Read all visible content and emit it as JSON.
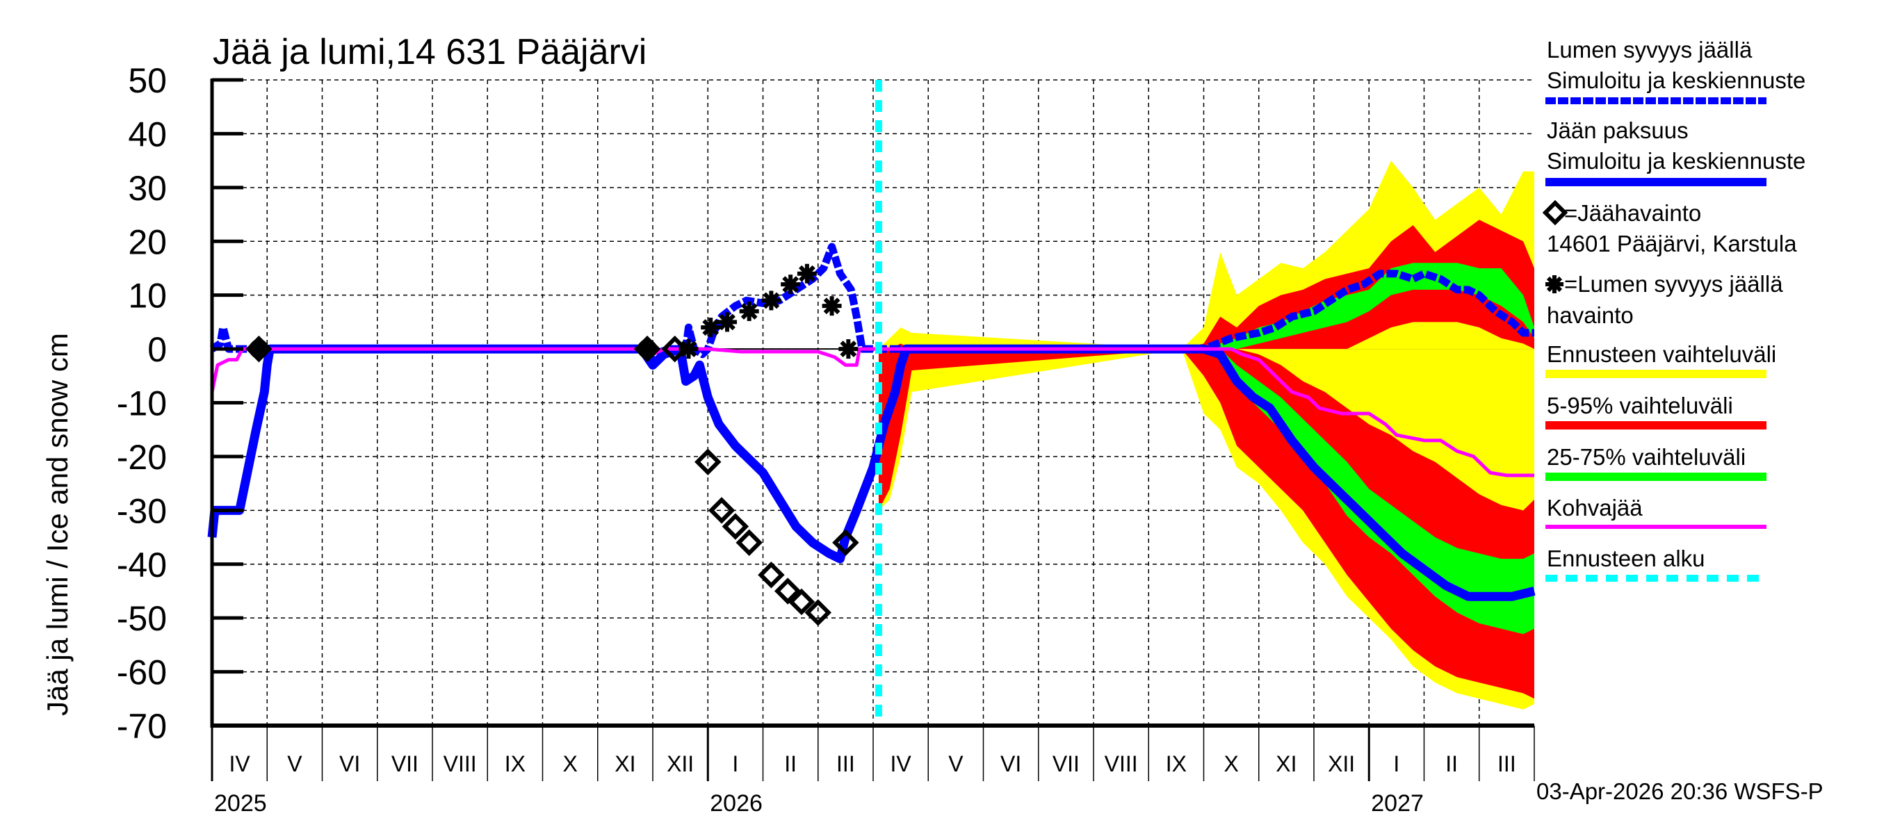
{
  "chart_data": {
    "type": "area",
    "title": "Jää ja lumi,14 631 Pääjärvi",
    "ylabel": "Jää ja lumi / Ice and snow    cm",
    "xlabel": "",
    "ylim": [
      -70,
      50
    ],
    "yticks": [
      50,
      40,
      30,
      20,
      10,
      0,
      -10,
      -20,
      -30,
      -40,
      -50,
      -60,
      -70
    ],
    "grid": true,
    "legend_position": "right",
    "x_months": [
      "IV",
      "V",
      "VI",
      "VII",
      "VIII",
      "IX",
      "X",
      "XI",
      "XII",
      "I",
      "II",
      "III",
      "IV",
      "V",
      "VI",
      "VII",
      "VIII",
      "IX",
      "X",
      "XI",
      "XII",
      "I",
      "II",
      "III"
    ],
    "x_years": [
      {
        "label": "2025",
        "month_index": 0
      },
      {
        "label": "2026",
        "month_index": 9
      },
      {
        "label": "2027",
        "month_index": 21
      }
    ],
    "x_range": [
      "2025-04-01",
      "2027-04-01"
    ],
    "forecast_start": "2026-04-03",
    "forecast_start_month_index": 12.1,
    "colors": {
      "snow_sim": "#0000ff",
      "ice_sim": "#0000ff",
      "band_full": "#ffff00",
      "band_5_95": "#ff0000",
      "band_25_75": "#00ff00",
      "slush_ice": "#ff00ff",
      "forecast_start": "#00ffff",
      "observations": "#000000"
    },
    "series": [
      {
        "name": "Lumen syvyys jäällä – Simuloitu ja keskiennuste",
        "style": "dashed-thick",
        "points": [
          [
            0,
            0
          ],
          [
            0.15,
            1
          ],
          [
            0.2,
            4
          ],
          [
            0.3,
            0
          ],
          [
            4.5,
            0
          ],
          [
            7.85,
            0
          ],
          [
            7.9,
            1
          ],
          [
            8.0,
            -1
          ],
          [
            8.3,
            0
          ],
          [
            8.6,
            0
          ],
          [
            8.65,
            4
          ],
          [
            8.75,
            0
          ],
          [
            8.9,
            -1
          ],
          [
            9.0,
            0
          ],
          [
            9.1,
            3
          ],
          [
            9.25,
            6
          ],
          [
            9.5,
            8
          ],
          [
            9.7,
            9
          ],
          [
            10.0,
            8.5
          ],
          [
            10.3,
            9
          ],
          [
            10.6,
            11
          ],
          [
            10.9,
            13
          ],
          [
            11.1,
            15
          ],
          [
            11.25,
            19
          ],
          [
            11.4,
            14
          ],
          [
            11.6,
            11
          ],
          [
            11.7,
            6
          ],
          [
            11.8,
            0
          ],
          [
            12.1,
            0
          ],
          [
            17.5,
            0
          ],
          [
            18.0,
            0
          ],
          [
            18.5,
            2
          ],
          [
            19.0,
            3
          ],
          [
            19.3,
            4
          ],
          [
            19.6,
            6
          ],
          [
            20.0,
            7
          ],
          [
            20.3,
            9
          ],
          [
            20.6,
            11
          ],
          [
            20.9,
            12
          ],
          [
            21.2,
            14
          ],
          [
            21.5,
            14
          ],
          [
            21.8,
            13
          ],
          [
            22.0,
            14
          ],
          [
            22.3,
            13
          ],
          [
            22.6,
            11
          ],
          [
            22.8,
            11
          ],
          [
            23.0,
            10
          ],
          [
            23.3,
            7
          ],
          [
            23.6,
            5
          ],
          [
            23.8,
            3
          ],
          [
            24.0,
            3
          ]
        ]
      },
      {
        "name": "Jään paksuus – Simuloitu ja keskiennuste",
        "style": "solid-thick",
        "points": [
          [
            0,
            -35
          ],
          [
            0.05,
            -30
          ],
          [
            0.2,
            -30
          ],
          [
            0.5,
            -30
          ],
          [
            0.6,
            -25
          ],
          [
            0.8,
            -15
          ],
          [
            0.95,
            -8
          ],
          [
            1.0,
            -3
          ],
          [
            1.05,
            0
          ],
          [
            4.5,
            0
          ],
          [
            7.8,
            0
          ],
          [
            8.0,
            -3
          ],
          [
            8.2,
            -1
          ],
          [
            8.5,
            0
          ],
          [
            8.6,
            -6
          ],
          [
            8.75,
            -5
          ],
          [
            8.85,
            -3
          ],
          [
            9.0,
            -9
          ],
          [
            9.2,
            -14
          ],
          [
            9.5,
            -18
          ],
          [
            9.7,
            -20
          ],
          [
            10.0,
            -23
          ],
          [
            10.3,
            -28
          ],
          [
            10.6,
            -33
          ],
          [
            10.9,
            -36
          ],
          [
            11.2,
            -38
          ],
          [
            11.4,
            -39
          ],
          [
            11.5,
            -35
          ],
          [
            11.7,
            -30
          ],
          [
            12.0,
            -22
          ],
          [
            12.2,
            -14
          ],
          [
            12.4,
            -8
          ],
          [
            12.5,
            -3
          ],
          [
            12.6,
            0
          ],
          [
            17.5,
            0
          ],
          [
            18.0,
            0
          ],
          [
            18.3,
            -1
          ],
          [
            18.6,
            -6
          ],
          [
            18.9,
            -9
          ],
          [
            19.2,
            -11
          ],
          [
            19.6,
            -17
          ],
          [
            20.0,
            -22
          ],
          [
            20.4,
            -26
          ],
          [
            20.8,
            -30
          ],
          [
            21.2,
            -34
          ],
          [
            21.6,
            -38
          ],
          [
            22.0,
            -41
          ],
          [
            22.4,
            -44
          ],
          [
            22.8,
            -46
          ],
          [
            23.2,
            -46
          ],
          [
            23.6,
            -46
          ],
          [
            24.0,
            -45
          ]
        ]
      },
      {
        "name": "Kohvajää",
        "style": "solid",
        "points": [
          [
            0,
            -8
          ],
          [
            0.1,
            -3
          ],
          [
            0.3,
            -2
          ],
          [
            0.45,
            -2
          ],
          [
            0.55,
            0
          ],
          [
            7.8,
            0
          ],
          [
            8.0,
            -1
          ],
          [
            8.2,
            0
          ],
          [
            9.0,
            0
          ],
          [
            9.6,
            -0.5
          ],
          [
            11.0,
            -0.5
          ],
          [
            11.3,
            -1.5
          ],
          [
            11.5,
            -3
          ],
          [
            11.7,
            -3
          ],
          [
            11.75,
            0
          ],
          [
            12.1,
            0
          ],
          [
            18.5,
            0
          ],
          [
            18.7,
            -1
          ],
          [
            19.0,
            -2
          ],
          [
            19.3,
            -5
          ],
          [
            19.6,
            -8
          ],
          [
            19.9,
            -9
          ],
          [
            20.1,
            -11
          ],
          [
            20.5,
            -12
          ],
          [
            21.0,
            -12
          ],
          [
            21.3,
            -14
          ],
          [
            21.5,
            -16
          ],
          [
            22.0,
            -17
          ],
          [
            22.3,
            -17
          ],
          [
            22.6,
            -19
          ],
          [
            22.9,
            -20
          ],
          [
            23.2,
            -23
          ],
          [
            23.5,
            -23.5
          ],
          [
            24.0,
            -23.5
          ]
        ]
      }
    ],
    "bands": {
      "upper": {
        "x": [
          12.1,
          12.3,
          12.5,
          12.7,
          17.6,
          18.0,
          18.3,
          18.6,
          19.0,
          19.4,
          19.8,
          20.2,
          20.6,
          21.0,
          21.4,
          21.8,
          22.2,
          22.6,
          23.0,
          23.4,
          23.8,
          24.0
        ],
        "yellow_hi": [
          0,
          2,
          4,
          3,
          0,
          4,
          18,
          10,
          13,
          16,
          15,
          18,
          22,
          26,
          35,
          30,
          24,
          27,
          30,
          25,
          33,
          33
        ],
        "red_hi": [
          0,
          0,
          1,
          0,
          0,
          1,
          6,
          4,
          8,
          10,
          11,
          13,
          14,
          15,
          20,
          23,
          18,
          21,
          24,
          22,
          20,
          15
        ],
        "green_hi": [
          0,
          0,
          0,
          0,
          0,
          0,
          1,
          2,
          4,
          5,
          7,
          9,
          10,
          11,
          15,
          16,
          16,
          16,
          15,
          15,
          10,
          4
        ],
        "green_lo": [
          0,
          0,
          0,
          0,
          0,
          0,
          0,
          0,
          1,
          2,
          3,
          4,
          5,
          7,
          10,
          11,
          11,
          11,
          10,
          8,
          5,
          2
        ],
        "red_lo": [
          0,
          0,
          0,
          0,
          0,
          0,
          0,
          0,
          0,
          0,
          0,
          0,
          0,
          2,
          4,
          5,
          5,
          5,
          4,
          2,
          1,
          0
        ]
      },
      "lower": {
        "x": [
          12.1,
          12.3,
          12.5,
          12.7,
          17.6,
          18.0,
          18.3,
          18.6,
          19.0,
          19.4,
          19.8,
          20.2,
          20.6,
          21.0,
          21.4,
          21.8,
          22.2,
          22.6,
          23.0,
          23.4,
          23.8,
          24.0
        ],
        "yellow_lo": [
          -30,
          -28,
          -20,
          -8,
          0,
          -12,
          -15,
          -22,
          -25,
          -30,
          -36,
          -40,
          -46,
          -50,
          -54,
          -59,
          -62,
          -64,
          -65,
          -66,
          -67,
          -66
        ],
        "red_lo": [
          -30,
          -26,
          -16,
          -4,
          0,
          -5,
          -10,
          -18,
          -22,
          -26,
          -30,
          -36,
          -42,
          -47,
          -52,
          -56,
          -59,
          -61,
          -62,
          -63,
          -64,
          -65
        ],
        "green_lo": [
          0,
          0,
          0,
          0,
          0,
          0,
          -2,
          -7,
          -11,
          -15,
          -20,
          -25,
          -31,
          -35,
          -38,
          -42,
          -46,
          -49,
          -51,
          -52,
          -53,
          -52
        ],
        "green_hi": [
          0,
          0,
          0,
          0,
          0,
          0,
          0,
          -3,
          -6,
          -9,
          -13,
          -17,
          -21,
          -26,
          -29,
          -32,
          -35,
          -37,
          -38,
          -39,
          -39,
          -38
        ],
        "red_hi": [
          0,
          0,
          0,
          0,
          0,
          0,
          0,
          0,
          -1,
          -3,
          -6,
          -8,
          -11,
          -14,
          -16,
          -19,
          -21,
          -24,
          -27,
          -29,
          -30,
          -28
        ],
        "yellow_hi": [
          0,
          0,
          0,
          0,
          0,
          0,
          0,
          0,
          0,
          0,
          -1,
          -3,
          -5,
          -9,
          -12,
          -15,
          -18,
          -20,
          -23,
          -25,
          -27,
          -25
        ]
      }
    },
    "observations": {
      "ice": {
        "name": "Jäähavainto",
        "marker": "diamond",
        "points": [
          [
            0.85,
            0
          ],
          [
            7.9,
            0
          ],
          [
            8.4,
            0
          ],
          [
            9.0,
            -21
          ],
          [
            9.25,
            -30
          ],
          [
            9.5,
            -33
          ],
          [
            9.75,
            -36
          ],
          [
            10.15,
            -42
          ],
          [
            10.45,
            -45
          ],
          [
            10.7,
            -47
          ],
          [
            11.0,
            -49
          ],
          [
            11.5,
            -36
          ]
        ]
      },
      "snow": {
        "name": "Lumen syvyys jäällä havainto",
        "marker": "asterisk",
        "points": [
          [
            0.85,
            0
          ],
          [
            7.9,
            0
          ],
          [
            8.65,
            0
          ],
          [
            9.05,
            4
          ],
          [
            9.35,
            5
          ],
          [
            9.75,
            7
          ],
          [
            10.15,
            9
          ],
          [
            10.5,
            12
          ],
          [
            10.8,
            14
          ],
          [
            11.25,
            8
          ],
          [
            11.55,
            0
          ]
        ]
      }
    }
  },
  "legend": {
    "items": [
      {
        "line1": "Lumen syvyys jäällä",
        "line2": "Simuloitu ja keskiennuste",
        "swatch": "blue-dashed"
      },
      {
        "line1": "Jään paksuus",
        "line2": "Simuloitu ja keskiennuste",
        "swatch": "blue-solid"
      },
      {
        "line1": "=Jäähavainto",
        "line2": "14601 Pääjärvi, Karstula",
        "swatch": "diamond"
      },
      {
        "line1": "=Lumen syvyys jäällä",
        "line2": "havainto",
        "swatch": "asterisk"
      },
      {
        "line1": "Ennusteen vaihteluväli",
        "swatch": "yellow"
      },
      {
        "line1": "5-95% vaihteluväli",
        "swatch": "red"
      },
      {
        "line1": "25-75% vaihteluväli",
        "swatch": "green"
      },
      {
        "line1": "Kohvajää",
        "swatch": "magenta"
      },
      {
        "line1": "Ennusteen alku",
        "swatch": "cyan-dashed"
      }
    ]
  },
  "footer": {
    "timestamp": "03-Apr-2026 20:36 WSFS-P"
  }
}
